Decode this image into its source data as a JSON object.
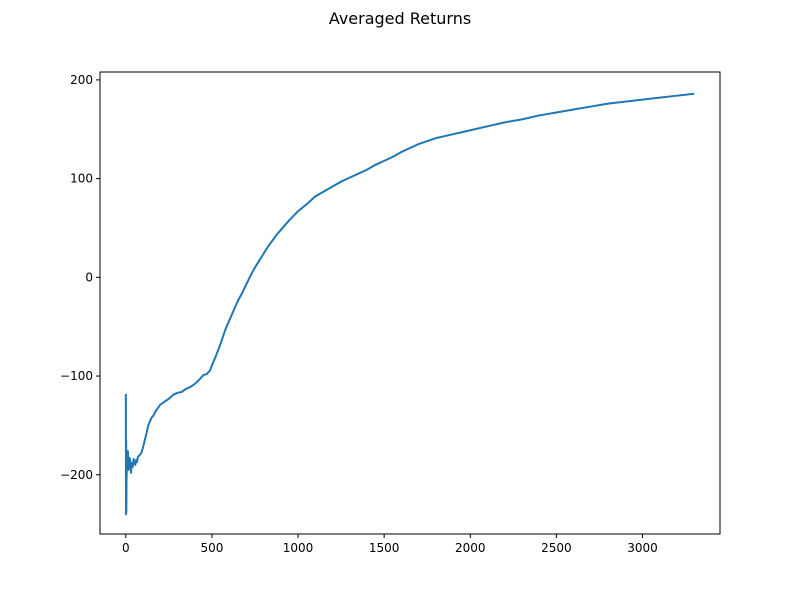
{
  "chart_data": {
    "type": "line",
    "title": "Averaged Returns",
    "xlabel": "",
    "ylabel": "",
    "xlim": [
      -150,
      3450
    ],
    "ylim": [
      -260,
      208
    ],
    "xticks": [
      0,
      500,
      1000,
      1500,
      2000,
      2500,
      3000
    ],
    "yticks": [
      -200,
      -100,
      0,
      100,
      200
    ],
    "grid": false,
    "series": [
      {
        "color": "#1f77b4",
        "x": [
          0,
          1,
          2,
          3,
          4,
          5,
          6,
          7,
          8,
          10,
          12,
          14,
          16,
          18,
          20,
          22,
          25,
          28,
          30,
          35,
          40,
          45,
          50,
          55,
          60,
          65,
          70,
          80,
          90,
          100,
          110,
          120,
          130,
          140,
          150,
          160,
          175,
          200,
          225,
          250,
          275,
          300,
          325,
          350,
          375,
          400,
          425,
          450,
          470,
          490,
          500,
          520,
          540,
          560,
          580,
          600,
          625,
          650,
          675,
          700,
          725,
          750,
          775,
          800,
          825,
          850,
          875,
          900,
          950,
          1000,
          1050,
          1100,
          1150,
          1200,
          1250,
          1300,
          1350,
          1400,
          1450,
          1500,
          1550,
          1600,
          1650,
          1700,
          1750,
          1800,
          1850,
          1900,
          1950,
          2000,
          2100,
          2200,
          2300,
          2400,
          2500,
          2600,
          2700,
          2800,
          2900,
          3000,
          3100,
          3200,
          3300
        ],
        "y": [
          -118,
          -240,
          -165,
          -238,
          -205,
          -200,
          -178,
          -190,
          -182,
          -188,
          -176,
          -185,
          -195,
          -192,
          -188,
          -183,
          -186,
          -193,
          -198,
          -188,
          -192,
          -184,
          -188,
          -190,
          -185,
          -187,
          -182,
          -180,
          -178,
          -172,
          -165,
          -158,
          -150,
          -146,
          -142,
          -140,
          -135,
          -129,
          -126,
          -123,
          -119,
          -117,
          -116,
          -113,
          -111,
          -108,
          -104,
          -99,
          -98,
          -94,
          -89,
          -81,
          -72,
          -62,
          -52,
          -44,
          -34,
          -24,
          -16,
          -7,
          2,
          10,
          17,
          24,
          31,
          37,
          43,
          48,
          58,
          67,
          74,
          82,
          87,
          92,
          97,
          101,
          105,
          109,
          114,
          118,
          122,
          127,
          131,
          135,
          138,
          141,
          143,
          145,
          147,
          149,
          153,
          157,
          160,
          164,
          167,
          170,
          173,
          176,
          178,
          180,
          182,
          184,
          186
        ]
      }
    ]
  }
}
